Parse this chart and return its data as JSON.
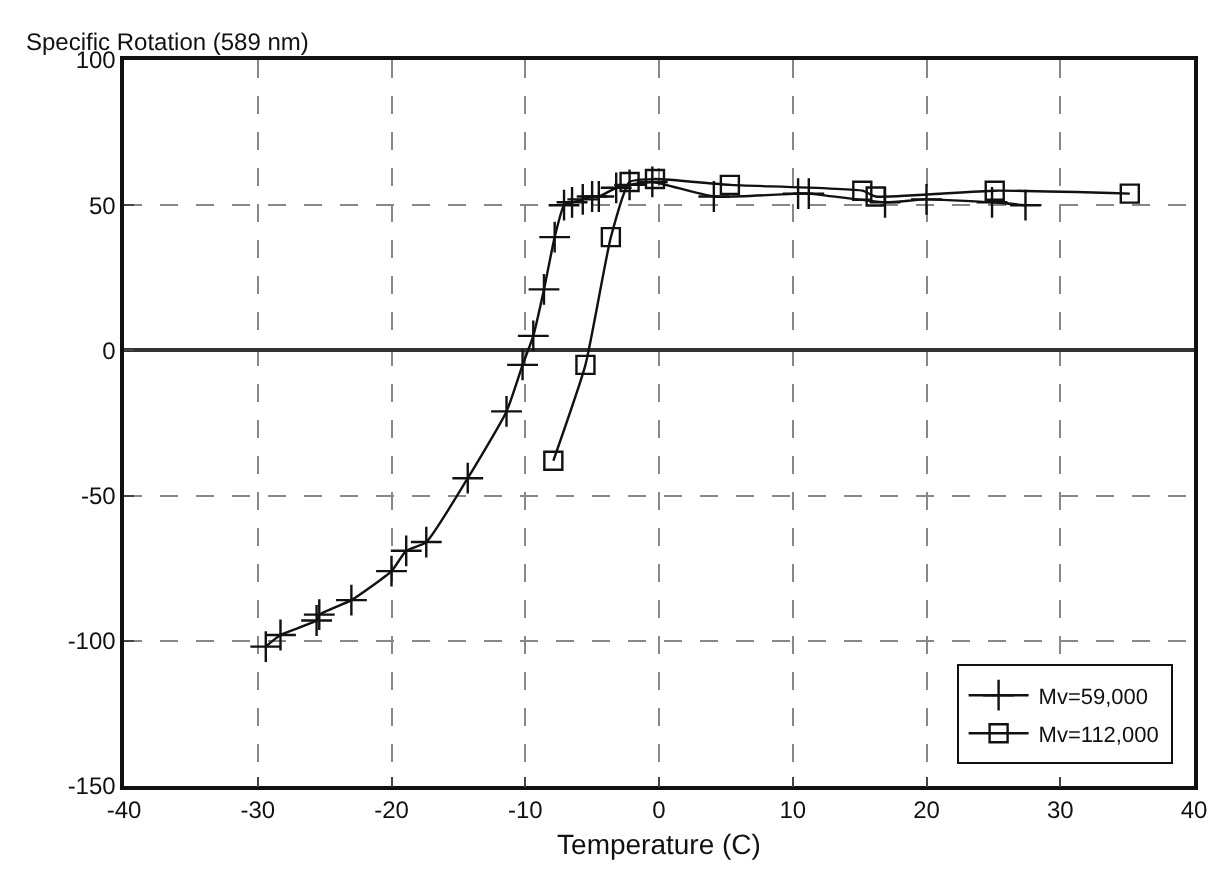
{
  "chart_data": {
    "type": "line",
    "ylabel": "Specific Rotation (589 nm)",
    "xlabel": "Temperature (C)",
    "xlim": [
      -40,
      40
    ],
    "xticks": [
      -40,
      -30,
      -20,
      -10,
      0,
      10,
      20,
      30,
      40
    ],
    "ylim": [
      -150,
      100
    ],
    "yticks": [
      -150,
      -100,
      -50,
      0,
      50,
      100
    ],
    "grid": true,
    "legend": "bottom right",
    "line_style": "solid",
    "series": [
      {
        "name": "Mv=59,000",
        "color": "#111111",
        "marker": "cross",
        "x": [
          -29.4,
          -28.3,
          -25.6,
          -25.4,
          -23,
          -20,
          -18.9,
          -17.4,
          -14.3,
          -11.4,
          -10.2,
          -9.4,
          -8.6,
          -7.8,
          -7.1,
          -6.5,
          -5.7,
          -5,
          -4.5,
          -3.2,
          -2.2,
          -0.5,
          4.1,
          10.4,
          11.2,
          16.9,
          20,
          24.9,
          27.4
        ],
        "values": [
          -102,
          -98,
          -93,
          -91,
          -86,
          -76,
          -69,
          -66,
          -44,
          -21,
          -5,
          5,
          21,
          39,
          50,
          51,
          52,
          53,
          53,
          56,
          57,
          58,
          53,
          54,
          54,
          51,
          52,
          51,
          50
        ]
      },
      {
        "name": "Mv=112,000",
        "color": "#111111",
        "marker": "square",
        "x": [
          -7.9,
          -5.5,
          -3.6,
          -2.2,
          -0.3,
          5.3,
          15.2,
          16.2,
          25.1,
          35.2
        ],
        "values": [
          -38,
          -5,
          39,
          58,
          59,
          57,
          55,
          53,
          55,
          54
        ]
      }
    ]
  }
}
